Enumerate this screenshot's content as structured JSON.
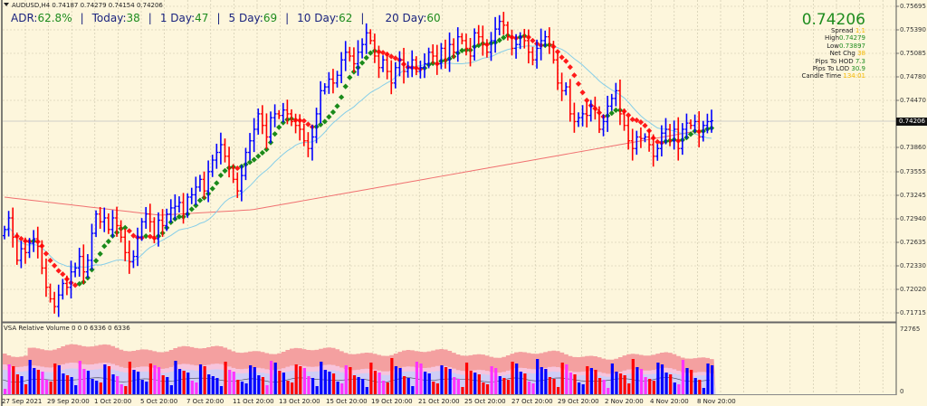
{
  "header": {
    "symbol_line": "AUDUSD,H4  0.74187 0.74279 0.74154 0.74206"
  },
  "adr": {
    "items": [
      {
        "label": "ADR:",
        "value": "62.8%"
      },
      {
        "label": "Today:",
        "value": "38"
      },
      {
        "label": "1 Day:",
        "value": "47"
      },
      {
        "label": "5 Day:",
        "value": "69"
      },
      {
        "label": "10 Day:",
        "value": "62"
      },
      {
        "label": "20 Day:",
        "value": "60"
      }
    ],
    "separator": "|"
  },
  "info_panel": {
    "price": "0.74206",
    "rows": [
      {
        "label": "Spread",
        "value": "1.1",
        "color": "yellow"
      },
      {
        "label": "High",
        "value": "0.74279",
        "color": "green"
      },
      {
        "label": "Low",
        "value": "0.73897",
        "color": "green"
      },
      {
        "label": "Net Chg",
        "value": "38",
        "color": "yellow"
      },
      {
        "label": "Pips To HOD",
        "value": "7.3",
        "color": "green"
      },
      {
        "label": "Pips To LOD",
        "value": "30.9",
        "color": "green"
      },
      {
        "label": "Candle Time",
        "value": "134:01",
        "color": "yellow"
      }
    ]
  },
  "indicator": {
    "label": "VSA Relative Volume 0 0 0 6336 0 6336",
    "axis_max": "72765",
    "axis_min": "0"
  },
  "colors": {
    "background": "#fdf6dc",
    "grid": "#c8c2a8",
    "bull_bar": "#0000ff",
    "bear_bar": "#ff0000",
    "ma_up": "#1a8a1a",
    "ma_down": "#ff1a1a",
    "ma_cyan": "#87cee8",
    "ma_slow": "#f07070",
    "vol_high": "#f4a0a0",
    "vol_mid": "#f7c4dc",
    "vol_low": "#cfcdf5",
    "vol_magenta": "#ff33ff"
  },
  "chart_data": {
    "type": "ohlc",
    "title": "AUDUSD,H4",
    "ohlc_last": {
      "open": 0.74187,
      "high": 0.74279,
      "low": 0.74154,
      "close": 0.74206
    },
    "y_ticks": [
      "0.75695",
      "0.75390",
      "0.75085",
      "0.74780",
      "0.74470",
      "0.74206",
      "0.73860",
      "0.73555",
      "0.73245",
      "0.72940",
      "0.72635",
      "0.72330",
      "0.72020",
      "0.71715"
    ],
    "ylim": [
      0.716,
      0.7575
    ],
    "current_price": "0.74206",
    "x_ticks": [
      "27 Sep 2021",
      "29 Sep 20:00",
      "1 Oct 20:00",
      "5 Oct 20:00",
      "7 Oct 20:00",
      "11 Oct 20:00",
      "13 Oct 20:00",
      "15 Oct 20:00",
      "19 Oct 20:00",
      "21 Oct 20:00",
      "25 Oct 20:00",
      "27 Oct 20:00",
      "29 Oct 20:00",
      "2 Nov 20:00",
      "4 Nov 20:00",
      "8 Nov 20:00"
    ],
    "closes": [
      0.728,
      0.7295,
      0.727,
      0.724,
      0.7255,
      0.725,
      0.7262,
      0.7268,
      0.7258,
      0.723,
      0.7205,
      0.719,
      0.718,
      0.7195,
      0.721,
      0.7205,
      0.7225,
      0.723,
      0.7245,
      0.7225,
      0.724,
      0.7275,
      0.73,
      0.729,
      0.7295,
      0.728,
      0.7295,
      0.7285,
      0.727,
      0.725,
      0.7238,
      0.7245,
      0.727,
      0.729,
      0.73,
      0.729,
      0.7268,
      0.7292,
      0.7285,
      0.73,
      0.7308,
      0.731,
      0.7315,
      0.73,
      0.7322,
      0.7325,
      0.7335,
      0.7345,
      0.733,
      0.7355,
      0.737,
      0.738,
      0.739,
      0.7375,
      0.736,
      0.7345,
      0.733,
      0.735,
      0.738,
      0.7395,
      0.741,
      0.743,
      0.7415,
      0.74,
      0.7425,
      0.743,
      0.7428,
      0.7435,
      0.743,
      0.742,
      0.7415,
      0.741,
      0.7395,
      0.7385,
      0.74,
      0.743,
      0.746,
      0.7465,
      0.7475,
      0.747,
      0.748,
      0.75,
      0.751,
      0.7505,
      0.7495,
      0.751,
      0.752,
      0.7535,
      0.7525,
      0.7505,
      0.749,
      0.75,
      0.7485,
      0.747,
      0.749,
      0.75,
      0.7485,
      0.749,
      0.75,
      0.7485,
      0.749,
      0.7495,
      0.751,
      0.7505,
      0.7495,
      0.7515,
      0.75,
      0.752,
      0.751,
      0.753,
      0.7525,
      0.7515,
      0.7505,
      0.7535,
      0.753,
      0.752,
      0.751,
      0.7525,
      0.754,
      0.755,
      0.7545,
      0.753,
      0.7515,
      0.752,
      0.753,
      0.7525,
      0.751,
      0.75,
      0.7515,
      0.7525,
      0.753,
      0.752,
      0.75,
      0.747,
      0.746,
      0.7465,
      0.743,
      0.742,
      0.7425,
      0.743,
      0.7428,
      0.744,
      0.7435,
      0.741,
      0.742,
      0.744,
      0.745,
      0.746,
      0.743,
      0.7415,
      0.7395,
      0.7385,
      0.74,
      0.7398,
      0.74,
      0.739,
      0.7375,
      0.7385,
      0.7405,
      0.741,
      0.7395,
      0.741,
      0.7385,
      0.741,
      0.7418,
      0.7415,
      0.742,
      0.74,
      0.7415,
      0.742,
      0.7421
    ],
    "series": [
      {
        "name": "Fast MA (green/red dots)",
        "type": "line"
      },
      {
        "name": "Cyan MA",
        "type": "line"
      },
      {
        "name": "Slow MA (red)",
        "type": "line"
      }
    ],
    "volume_panel": {
      "label": "VSA Relative Volume",
      "ylim": [
        0,
        72765
      ]
    },
    "grid": true
  }
}
